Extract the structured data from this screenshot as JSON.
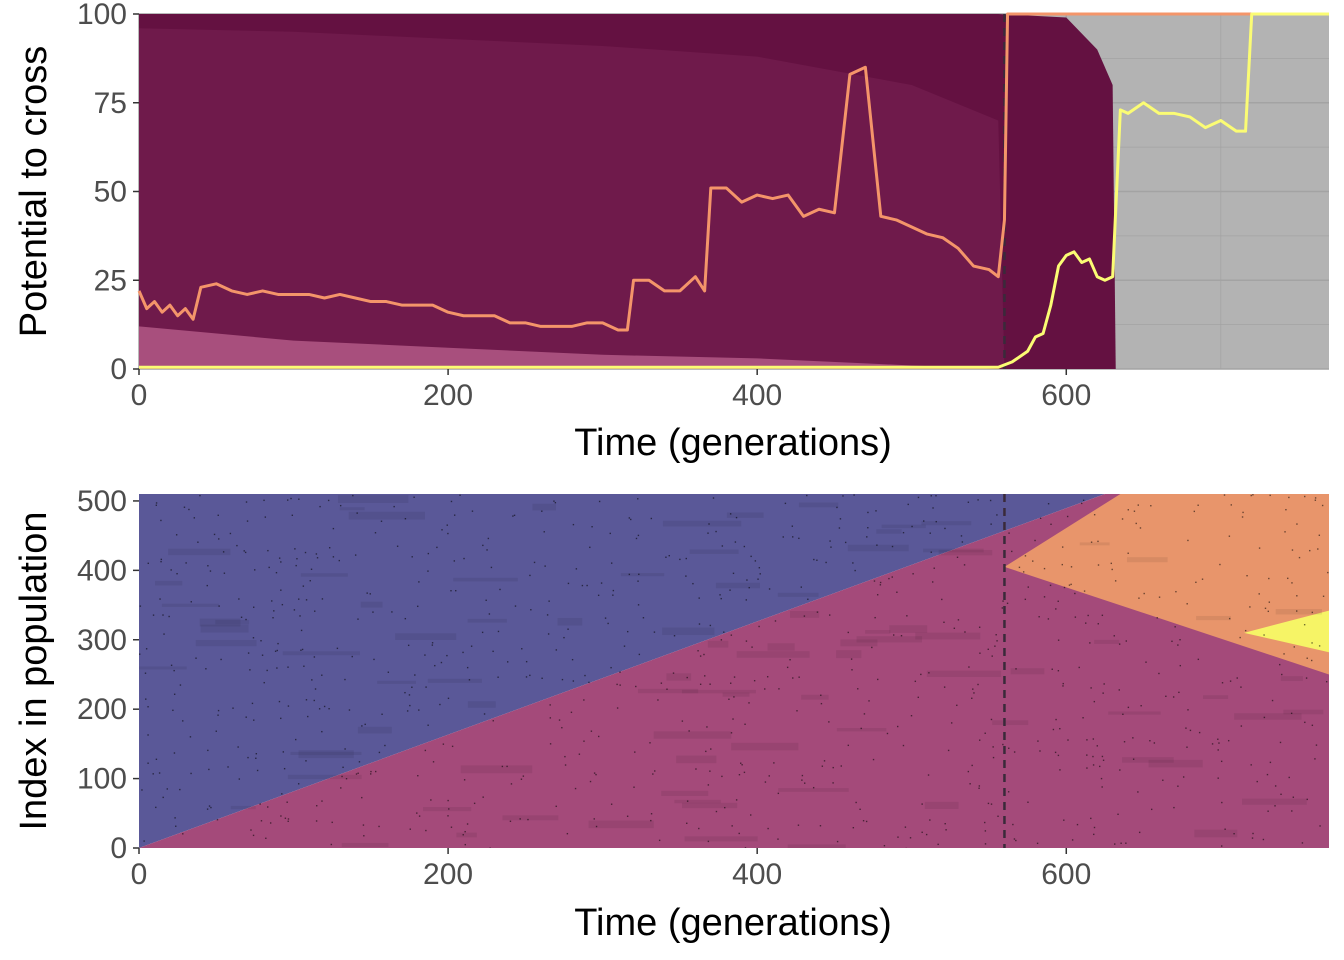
{
  "colors": {
    "band_dark": "#641141",
    "band_mid": "#6f1a4b",
    "band_light": "#a84f7d",
    "background_grey": "#b3b3b3",
    "line_orange": "#f4956a",
    "line_yellow": "#fbfc74",
    "blue_region": "#5a5898",
    "pink_region": "#a44a7a",
    "orange_region": "#e8956b",
    "yellow_region": "#f6f466",
    "dashed_line": "#3a2a3a"
  },
  "chart_data": [
    {
      "type": "area",
      "xlabel": "Time (generations)",
      "ylabel": "Potential to cross",
      "xlim": [
        0,
        770
      ],
      "ylim": [
        0,
        100
      ],
      "x_ticks": [
        "0",
        "200",
        "400",
        "600"
      ],
      "y_ticks": [
        "0",
        "25",
        "50",
        "75",
        "100"
      ],
      "vline_x": 560,
      "grid": true,
      "legend": "none",
      "series": [
        {
          "color": "#f4956a",
          "x": [
            0,
            5,
            10,
            15,
            20,
            25,
            30,
            35,
            40,
            50,
            60,
            70,
            80,
            90,
            100,
            110,
            120,
            130,
            140,
            150,
            160,
            170,
            180,
            190,
            200,
            210,
            220,
            230,
            240,
            250,
            260,
            270,
            280,
            290,
            300,
            310,
            316,
            320,
            330,
            340,
            350,
            360,
            366,
            370,
            380,
            390,
            400,
            410,
            420,
            430,
            440,
            450,
            460,
            470,
            480,
            490,
            500,
            510,
            520,
            530,
            540,
            550,
            556,
            560,
            562,
            770
          ],
          "values": [
            22,
            17,
            19,
            16,
            18,
            15,
            17,
            14,
            23,
            24,
            22,
            21,
            22,
            21,
            21,
            21,
            20,
            21,
            20,
            19,
            19,
            18,
            18,
            18,
            16,
            15,
            15,
            15,
            13,
            13,
            12,
            12,
            12,
            13,
            13,
            11,
            11,
            25,
            25,
            22,
            22,
            26,
            22,
            51,
            51,
            47,
            49,
            48,
            49,
            43,
            45,
            44,
            83,
            85,
            43,
            42,
            40,
            38,
            37,
            34,
            29,
            28,
            26,
            42,
            100,
            100
          ]
        },
        {
          "color": "#fbfc74",
          "x": [
            0,
            100,
            200,
            300,
            400,
            500,
            556,
            565,
            575,
            580,
            585,
            590,
            595,
            600,
            605,
            610,
            615,
            620,
            625,
            630,
            635,
            640,
            650,
            660,
            670,
            680,
            690,
            700,
            710,
            716,
            720,
            770
          ],
          "values": [
            0.5,
            0.5,
            0.5,
            0.5,
            0.5,
            0.5,
            0.5,
            2,
            5,
            9,
            10,
            18,
            29,
            32,
            33,
            30,
            31,
            26,
            25,
            26,
            73,
            72,
            75,
            72,
            72,
            71,
            68,
            70,
            67,
            67,
            100,
            100
          ]
        }
      ],
      "bands": [
        {
          "color": "#641141",
          "x": [
            0,
            100,
            200,
            300,
            400,
            500,
            556,
            600,
            620,
            630,
            632
          ],
          "lower": [
            0,
            0,
            0,
            0,
            0,
            0,
            0,
            0,
            0,
            0,
            0
          ],
          "upper": [
            100,
            100,
            100,
            100,
            100,
            100,
            100,
            99,
            90,
            80,
            0
          ]
        },
        {
          "color": "#6f1a4b",
          "x": [
            0,
            100,
            200,
            300,
            400,
            500,
            556,
            560
          ],
          "lower": [
            0,
            0,
            0,
            0,
            0,
            0,
            0,
            0
          ],
          "upper": [
            96,
            95,
            93,
            91,
            88,
            80,
            70,
            0
          ]
        },
        {
          "color": "#a84f7d",
          "x": [
            0,
            100,
            200,
            300,
            400,
            500,
            556
          ],
          "lower": [
            0,
            0,
            0,
            0,
            0,
            0,
            0
          ],
          "upper": [
            12,
            8,
            6,
            4,
            3,
            1,
            0
          ]
        }
      ]
    },
    {
      "type": "heatmap",
      "xlabel": "Time (generations)",
      "ylabel": "Index in population",
      "xlim": [
        0,
        770
      ],
      "ylim": [
        0,
        510
      ],
      "x_ticks": [
        "0",
        "200",
        "400",
        "600"
      ],
      "y_ticks": [
        "0",
        "100",
        "200",
        "300",
        "400",
        "500"
      ],
      "vline_x": 560,
      "legend": "none",
      "regions": [
        {
          "color": "#5a5898",
          "points": [
            [
              0,
              0
            ],
            [
              0,
              510
            ],
            [
              625,
              510
            ]
          ]
        },
        {
          "color": "#a44a7a",
          "points": [
            [
              0,
              0
            ],
            [
              770,
              0
            ],
            [
              770,
              510
            ],
            [
              625,
              510
            ]
          ]
        },
        {
          "color": "#e8956b",
          "points": [
            [
              560,
              405
            ],
            [
              635,
              510
            ],
            [
              770,
              510
            ],
            [
              770,
              250
            ]
          ]
        },
        {
          "color": "#f6f466",
          "points": [
            [
              715,
              310
            ],
            [
              770,
              342
            ],
            [
              770,
              282
            ]
          ]
        }
      ]
    }
  ]
}
